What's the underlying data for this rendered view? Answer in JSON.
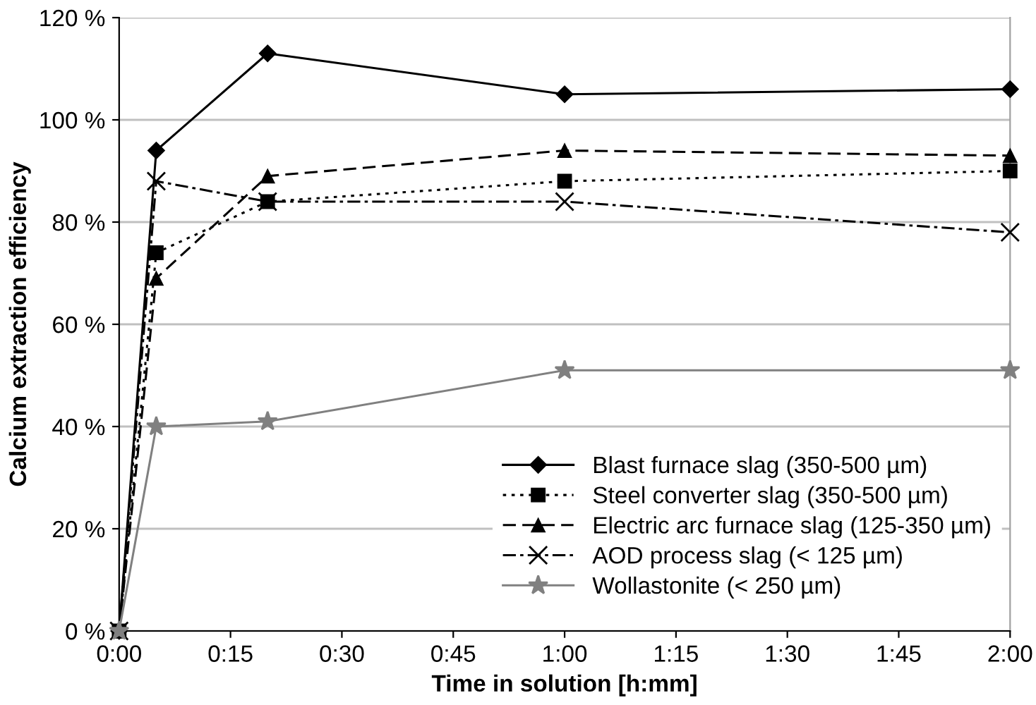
{
  "chart_data": {
    "type": "line",
    "xlabel": "Time in solution [h:mm]",
    "ylabel": "Calcium extraction efficiency",
    "xlim": [
      0,
      2
    ],
    "ylim": [
      0,
      120
    ],
    "xticks": [
      {
        "value": 0,
        "label": "0:00"
      },
      {
        "value": 0.25,
        "label": "0:15"
      },
      {
        "value": 0.5,
        "label": "0:30"
      },
      {
        "value": 0.75,
        "label": "0:45"
      },
      {
        "value": 1,
        "label": "1:00"
      },
      {
        "value": 1.25,
        "label": "1:15"
      },
      {
        "value": 1.5,
        "label": "1:30"
      },
      {
        "value": 1.75,
        "label": "1:45"
      },
      {
        "value": 2,
        "label": "2:00"
      }
    ],
    "yticks": [
      {
        "value": 0,
        "label": "0 %"
      },
      {
        "value": 20,
        "label": "20 %"
      },
      {
        "value": 40,
        "label": "40 %"
      },
      {
        "value": 60,
        "label": "60 %"
      },
      {
        "value": 80,
        "label": "80 %"
      },
      {
        "value": 100,
        "label": "100 %"
      },
      {
        "value": 120,
        "label": "120 %"
      }
    ],
    "x": [
      0,
      0.0833,
      0.3333,
      1,
      2
    ],
    "grid": "y",
    "legend": "bottom right",
    "series": [
      {
        "name": "Blast furnace slag (350-500 µm)",
        "color": "#000000",
        "marker": "diamond",
        "line_style": "solid",
        "values": [
          0,
          94,
          113,
          105,
          106
        ]
      },
      {
        "name": "Steel converter slag (350-500 µm)",
        "color": "#000000",
        "marker": "square",
        "line_style": "dotted",
        "values": [
          0,
          74,
          84,
          88,
          90
        ]
      },
      {
        "name": "Electric arc furnace slag (125-350 µm)",
        "color": "#000000",
        "marker": "triangle",
        "line_style": "dashed",
        "values": [
          0,
          69,
          89,
          94,
          93
        ]
      },
      {
        "name": "AOD process slag (< 125 µm)",
        "color": "#000000",
        "marker": "cross",
        "line_style": "dashdot",
        "values": [
          0,
          88,
          84,
          84,
          78
        ]
      },
      {
        "name": "Wollastonite (< 250 µm)",
        "color": "#808080",
        "marker": "star",
        "line_style": "solid",
        "values": [
          0,
          40,
          41,
          51,
          51
        ]
      }
    ]
  }
}
